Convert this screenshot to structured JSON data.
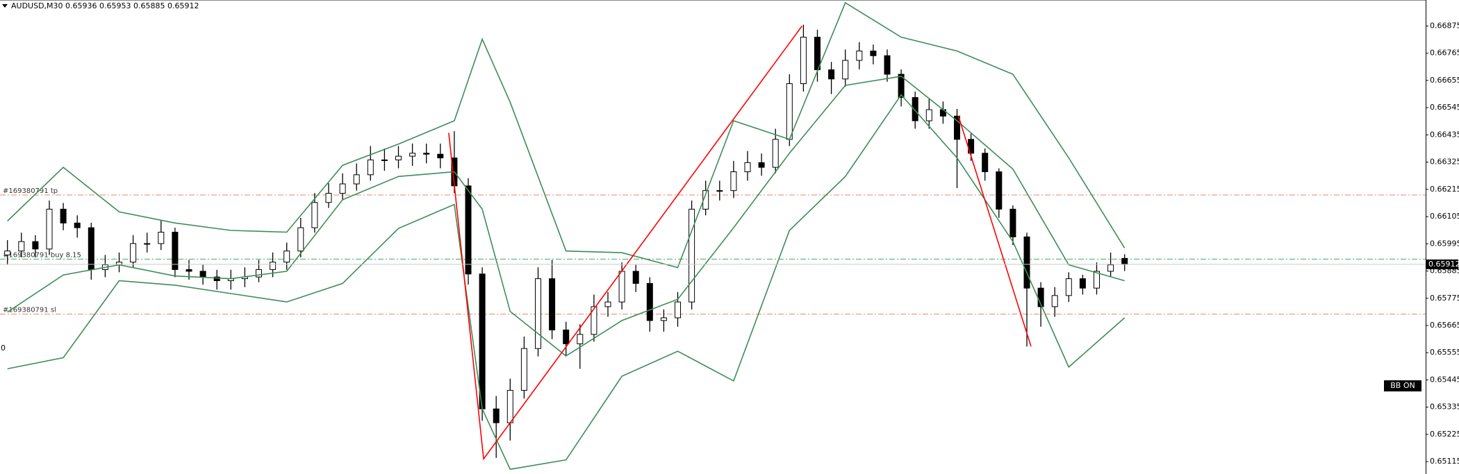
{
  "chart_data": {
    "type": "candlestick",
    "title": "AUDUSD,M30  0.65936 0.65953 0.65885 0.65912",
    "ylim": [
      0.65065,
      0.6698
    ],
    "yticks": [
      0.66875,
      0.66765,
      0.66655,
      0.66545,
      0.66435,
      0.66325,
      0.66215,
      0.66105,
      0.65995,
      0.65885,
      0.65775,
      0.65665,
      0.65555,
      0.65445,
      0.65335,
      0.65225,
      0.65115
    ],
    "up_color": "#ffffff",
    "down_color": "#000000",
    "open": [
      0.6595,
      0.65966,
      0.66004,
      0.65974,
      0.66135,
      0.66079,
      0.6606,
      0.65891,
      0.6591,
      0.65921,
      0.65996,
      0.65996,
      0.66042,
      0.65891,
      0.65884,
      0.65861,
      0.65846,
      0.65854,
      0.65861,
      0.65891,
      0.65921,
      0.65966,
      0.6606,
      0.66162,
      0.66199,
      0.66237,
      0.66274,
      0.66334,
      0.66334,
      0.66349,
      0.66361,
      0.66357,
      0.66342,
      0.66229,
      0.65873,
      0.65328,
      0.65272,
      0.65403,
      0.65572,
      0.65854,
      0.65647,
      0.65591,
      0.65629,
      0.65741,
      0.6576,
      0.65884,
      0.65835,
      0.65685,
      0.65696,
      0.6576,
      0.66135,
      0.6621,
      0.6621,
      0.66286,
      0.66323,
      0.66304,
      0.66417,
      0.66642,
      0.6683,
      0.66698,
      0.66661,
      0.66736,
      0.66774,
      0.66755,
      0.6668,
      0.66586,
      0.66492,
      0.66537,
      0.66511,
      0.66417,
      0.66361,
      0.66286,
      0.66135,
      0.66023,
      0.65816,
      0.65741,
      0.65786,
      0.65854,
      0.65816,
      0.65884,
      0.65936
    ],
    "high": [
      0.6601,
      0.6604,
      0.6603,
      0.6617,
      0.6616,
      0.6611,
      0.6608,
      0.6595,
      0.6596,
      0.6603,
      0.6604,
      0.6609,
      0.6606,
      0.6593,
      0.6591,
      0.6589,
      0.6589,
      0.659,
      0.6593,
      0.6596,
      0.66,
      0.661,
      0.662,
      0.6624,
      0.6628,
      0.6632,
      0.6639,
      0.6638,
      0.6639,
      0.664,
      0.664,
      0.664,
      0.6645,
      0.6626,
      0.659,
      0.6538,
      0.6545,
      0.6562,
      0.659,
      0.6593,
      0.6568,
      0.6567,
      0.6579,
      0.658,
      0.6592,
      0.6591,
      0.6586,
      0.6573,
      0.658,
      0.6617,
      0.6625,
      0.6625,
      0.6633,
      0.6637,
      0.6636,
      0.6646,
      0.6668,
      0.6688,
      0.6686,
      0.6673,
      0.6678,
      0.6681,
      0.668,
      0.6678,
      0.667,
      0.6661,
      0.6658,
      0.6657,
      0.6654,
      0.6644,
      0.6638,
      0.663,
      0.6615,
      0.6604,
      0.6584,
      0.6582,
      0.6588,
      0.6587,
      0.6592,
      0.6596,
      0.65953
    ],
    "low": [
      0.6591,
      0.6594,
      0.6594,
      0.6595,
      0.6605,
      0.6602,
      0.6585,
      0.6586,
      0.6588,
      0.659,
      0.6596,
      0.6597,
      0.6586,
      0.6585,
      0.6583,
      0.6581,
      0.6581,
      0.6582,
      0.6584,
      0.6586,
      0.6589,
      0.6594,
      0.6604,
      0.6614,
      0.6617,
      0.6621,
      0.6625,
      0.6629,
      0.663,
      0.6631,
      0.6632,
      0.663,
      0.662,
      0.6583,
      0.6528,
      0.6513,
      0.652,
      0.6537,
      0.6554,
      0.6561,
      0.6554,
      0.6549,
      0.656,
      0.657,
      0.6573,
      0.658,
      0.6564,
      0.6564,
      0.6566,
      0.6573,
      0.6611,
      0.6617,
      0.6618,
      0.6625,
      0.6627,
      0.6628,
      0.6639,
      0.6661,
      0.6665,
      0.666,
      0.6663,
      0.667,
      0.6672,
      0.6665,
      0.6655,
      0.6646,
      0.6646,
      0.6648,
      0.6622,
      0.6633,
      0.6625,
      0.661,
      0.6599,
      0.6558,
      0.6566,
      0.657,
      0.6576,
      0.6579,
      0.6579,
      0.6586,
      0.65885
    ],
    "close": [
      0.65966,
      0.66004,
      0.65974,
      0.66135,
      0.66079,
      0.6606,
      0.65891,
      0.6591,
      0.65921,
      0.65996,
      0.65996,
      0.66042,
      0.65891,
      0.65884,
      0.65861,
      0.65846,
      0.65854,
      0.65861,
      0.65891,
      0.65921,
      0.65966,
      0.6606,
      0.66162,
      0.66199,
      0.66237,
      0.66274,
      0.66334,
      0.66334,
      0.66349,
      0.66361,
      0.66357,
      0.66342,
      0.66229,
      0.65873,
      0.65328,
      0.65272,
      0.65403,
      0.65572,
      0.65854,
      0.65647,
      0.65591,
      0.65629,
      0.65741,
      0.6576,
      0.65884,
      0.65835,
      0.65685,
      0.65696,
      0.6576,
      0.66135,
      0.6621,
      0.6621,
      0.66286,
      0.66323,
      0.66304,
      0.66417,
      0.66642,
      0.6683,
      0.66698,
      0.66661,
      0.66736,
      0.66774,
      0.66755,
      0.6668,
      0.66586,
      0.66492,
      0.66537,
      0.66511,
      0.66417,
      0.66361,
      0.66286,
      0.66135,
      0.66023,
      0.65816,
      0.65741,
      0.65786,
      0.65854,
      0.65816,
      0.65884,
      0.6591,
      0.65912
    ],
    "lines": [
      {
        "color": "#3d8c5a",
        "x": [
          0,
          4,
          8,
          12,
          16,
          20,
          24,
          28,
          32,
          34,
          36,
          40,
          44,
          48,
          52,
          56,
          60,
          64,
          68,
          72,
          76,
          80
        ],
        "values": [
          0.66087,
          0.66304,
          0.66124,
          0.66079,
          0.66049,
          0.66042,
          0.66312,
          0.66398,
          0.66492,
          0.66822,
          0.66567,
          0.65966,
          0.65959,
          0.65899,
          0.66492,
          0.66417,
          0.66969,
          0.6683,
          0.66774,
          0.6668,
          0.66342,
          0.65978
        ]
      },
      {
        "color": "#3d8c5a",
        "x": [
          0,
          4,
          8,
          12,
          16,
          20,
          24,
          28,
          32,
          34,
          36,
          40,
          44,
          48,
          52,
          56,
          60,
          64,
          68,
          72,
          76,
          80
        ],
        "values": [
          0.65719,
          0.65869,
          0.6591,
          0.65865,
          0.65854,
          0.65884,
          0.66173,
          0.66267,
          0.66286,
          0.66135,
          0.65722,
          0.65542,
          0.65685,
          0.65771,
          0.6606,
          0.66361,
          0.66635,
          0.66672,
          0.66492,
          0.66297,
          0.6591,
          0.65846
        ]
      },
      {
        "color": "#3d8c5a",
        "x": [
          0,
          4,
          8,
          12,
          16,
          20,
          24,
          28,
          32,
          34,
          36,
          40,
          44,
          48,
          52,
          56,
          60,
          64,
          68,
          72,
          76,
          80
        ],
        "values": [
          0.6549,
          0.65535,
          0.65846,
          0.65828,
          0.65794,
          0.6576,
          0.65835,
          0.66057,
          0.66154,
          0.65328,
          0.65084,
          0.65122,
          0.6546,
          0.65561,
          0.65441,
          0.66049,
          0.66267,
          0.66597,
          0.66342,
          0.66004,
          0.65497,
          0.65696
        ]
      },
      {
        "color": "#ff0000",
        "x": [
          31.6,
          34.1,
          56.9,
          62,
          68.1,
          73.3
        ],
        "values": [
          0.66443,
          0.65126,
          0.66875,
          null,
          0.66511,
          0.6558
        ]
      }
    ],
    "levels": [
      {
        "label": "#169380791 tp",
        "value": 0.66192,
        "color": "#e8866c"
      },
      {
        "label": "#169380791 buy 8.15",
        "value": 0.65933,
        "color": "#3cae64"
      },
      {
        "label": "#169380791 sl",
        "value": 0.65711,
        "color": "#e8866c"
      }
    ],
    "current_price": 0.65912,
    "indicator_label": "BB ON",
    "left_marker": "0"
  }
}
